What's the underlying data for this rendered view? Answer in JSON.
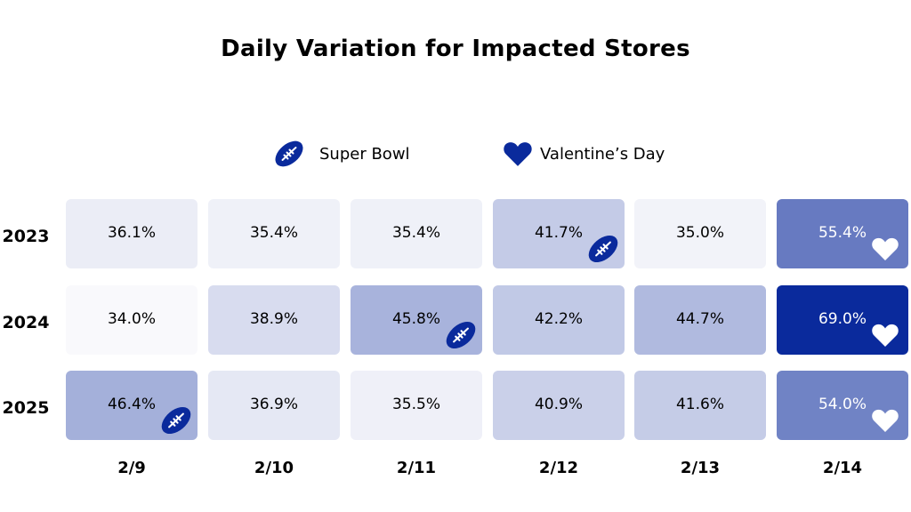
{
  "chart_data": {
    "type": "heatmap",
    "title": "Daily Variation for Impacted Stores",
    "columns": [
      "2/9",
      "2/10",
      "2/11",
      "2/12",
      "2/13",
      "2/14"
    ],
    "rows": [
      "2023",
      "2024",
      "2025"
    ],
    "values": [
      [
        36.1,
        35.4,
        35.4,
        41.7,
        35.0,
        55.4
      ],
      [
        34.0,
        38.9,
        45.8,
        42.2,
        44.7,
        69.0
      ],
      [
        46.4,
        36.9,
        35.5,
        40.9,
        41.6,
        54.0
      ]
    ],
    "labels": [
      [
        "36.1%",
        "35.4%",
        "35.4%",
        "41.7%",
        "35.0%",
        "55.4%"
      ],
      [
        "34.0%",
        "38.9%",
        "45.8%",
        "42.2%",
        "44.7%",
        "69.0%"
      ],
      [
        "46.4%",
        "36.9%",
        "35.5%",
        "40.9%",
        "41.6%",
        "54.0%"
      ]
    ],
    "markers": [
      [
        null,
        null,
        null,
        "football",
        null,
        "heart"
      ],
      [
        null,
        null,
        "football",
        null,
        null,
        "heart"
      ],
      [
        "football",
        null,
        null,
        null,
        null,
        "heart"
      ]
    ],
    "legend": [
      {
        "icon": "football",
        "label": "Super Bowl"
      },
      {
        "icon": "heart",
        "label": "Valentine’s Day"
      }
    ],
    "color_low": "#f9f9fc",
    "color_high": "#0a2a9c",
    "football_color": "#0a2a9c"
  }
}
